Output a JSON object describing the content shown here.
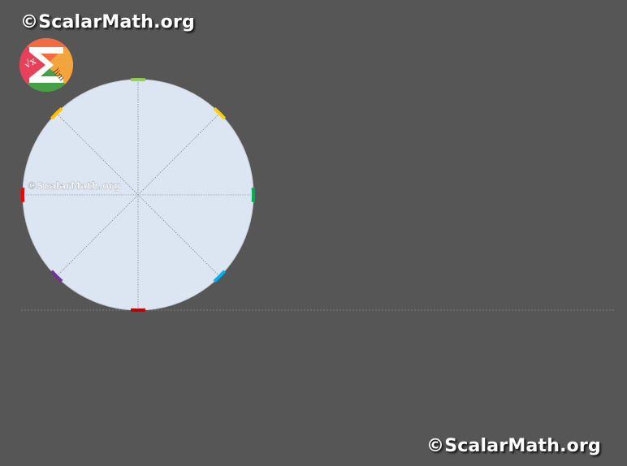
{
  "branding": {
    "site_top": "©ScalarMath.org",
    "site_bottom": "©ScalarMath.org",
    "watermark": "©ScalarMath.org",
    "logo": {
      "name": "scalarmath-logo",
      "letters": [
        "√x",
        "lim"
      ],
      "colors": [
        "#e8405a",
        "#f4a43c",
        "#43a047",
        "#f36b3f"
      ]
    }
  },
  "diagram": {
    "circle_fill": "#dce6f2",
    "circle_stroke": "#c8cfd8",
    "ground_line_color": "#8a8a8a",
    "spoke_color": "#666666",
    "markers": [
      {
        "name": "marker-top",
        "angle_deg": 90,
        "color": "#92d050"
      },
      {
        "name": "marker-top-right",
        "angle_deg": 45,
        "color": "#ffd000"
      },
      {
        "name": "marker-right",
        "angle_deg": 0,
        "color": "#00b050"
      },
      {
        "name": "marker-bottom-right",
        "angle_deg": -45,
        "color": "#00b0f0"
      },
      {
        "name": "marker-bottom",
        "angle_deg": -90,
        "color": "#c00000"
      },
      {
        "name": "marker-bottom-left",
        "angle_deg": -135,
        "color": "#7030a0"
      },
      {
        "name": "marker-left",
        "angle_deg": 180,
        "color": "#ff0000"
      },
      {
        "name": "marker-top-left",
        "angle_deg": 135,
        "color": "#ffc000"
      }
    ]
  }
}
